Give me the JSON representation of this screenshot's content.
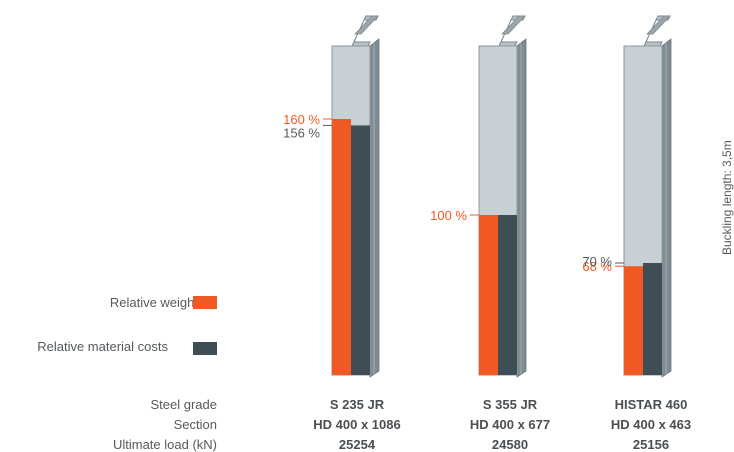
{
  "chart_data": {
    "type": "bar",
    "title": "",
    "ylim": [
      0,
      200
    ],
    "categories": [
      {
        "steel_grade": "S 235 JR",
        "section": "HD 400 x 1086",
        "ultimate_load": "25254"
      },
      {
        "steel_grade": "S 355 JR",
        "section": "HD 400 x 677",
        "ultimate_load": "24580"
      },
      {
        "steel_grade": "HISTAR 460",
        "section": "HD 400 x 463",
        "ultimate_load": "25156"
      }
    ],
    "series": [
      {
        "name": "Relative weight",
        "color": "#f05a22",
        "values": [
          160,
          100,
          68
        ],
        "labels": [
          "160 %",
          "100 %",
          "68 %"
        ]
      },
      {
        "name": "Relative material costs",
        "color": "#3f4d55",
        "values": [
          156,
          100,
          70
        ],
        "labels": [
          "156 %",
          "",
          "70 %"
        ]
      }
    ],
    "row_labels": {
      "steel_grade": "Steel grade",
      "section": "Section",
      "ultimate_load": "Ultimate load (kN)"
    },
    "side_label": "Buckling length: 3,5m",
    "legend_position": "left"
  }
}
